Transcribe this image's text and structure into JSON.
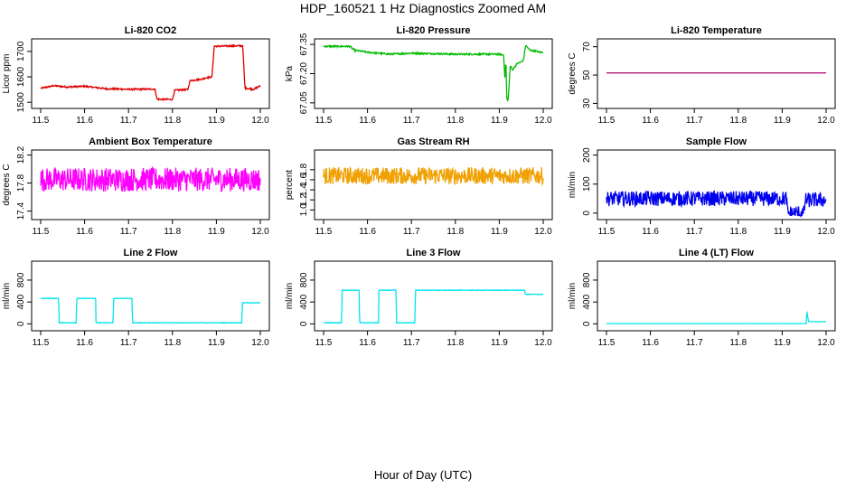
{
  "page": {
    "title": "HDP_160521  1 Hz Diagnostics Zoomed AM",
    "xlabel": "Hour of Day (UTC)"
  },
  "chart_data": [
    {
      "type": "line",
      "title": "Li-820 CO2",
      "ylabel": "Licor ppm",
      "color": "#dd0000",
      "xlim": [
        11.5,
        12.0
      ],
      "ylim": [
        1490,
        1735
      ],
      "xticks": [
        "11.5",
        "11.6",
        "11.7",
        "11.8",
        "11.9",
        "12.0"
      ],
      "yticks": [
        1500,
        1600,
        1700
      ],
      "x": [
        11.5,
        11.53,
        11.56,
        11.6,
        11.65,
        11.7,
        11.76,
        11.765,
        11.8,
        11.805,
        11.835,
        11.84,
        11.87,
        11.875,
        11.89,
        11.895,
        11.96,
        11.965,
        11.985,
        12.0
      ],
      "y": [
        1555,
        1565,
        1560,
        1563,
        1553,
        1551,
        1552,
        1512,
        1511,
        1547,
        1550,
        1585,
        1592,
        1596,
        1599,
        1720,
        1722,
        1556,
        1551,
        1565
      ],
      "noise": 3
    },
    {
      "type": "line",
      "title": "Li-820 Pressure",
      "ylabel": "kPa",
      "color": "#00bb00",
      "xlim": [
        11.5,
        12.0
      ],
      "ylim": [
        67.04,
        67.36
      ],
      "xticks": [
        "11.5",
        "11.6",
        "11.7",
        "11.8",
        "11.9",
        "12.0"
      ],
      "yticks": [
        "67.05",
        "67.20",
        "67.35"
      ],
      "x": [
        11.5,
        11.56,
        11.57,
        11.6,
        11.65,
        11.7,
        11.8,
        11.85,
        11.9,
        11.91,
        11.913,
        11.915,
        11.917,
        11.92,
        11.925,
        11.93,
        11.94,
        11.95,
        11.955,
        11.96,
        11.97,
        11.985,
        11.99,
        12.0
      ],
      "y": [
        67.34,
        67.34,
        67.32,
        67.31,
        67.3,
        67.305,
        67.3,
        67.3,
        67.3,
        67.295,
        67.16,
        67.28,
        67.07,
        67.06,
        67.24,
        67.22,
        67.25,
        67.26,
        67.27,
        67.345,
        67.32,
        67.315,
        67.31,
        67.31
      ],
      "noise": 0.004
    },
    {
      "type": "line",
      "title": "Li-820 Temperature",
      "ylabel": "degrees C",
      "color": "#b0187a",
      "xlim": [
        11.5,
        12.0
      ],
      "ylim": [
        29,
        73
      ],
      "xticks": [
        "11.5",
        "11.6",
        "11.7",
        "11.8",
        "11.9",
        "12.0"
      ],
      "yticks": [
        30,
        50,
        70
      ],
      "x": [
        11.5,
        12.0
      ],
      "y": [
        51.5,
        51.5
      ],
      "noise": 0
    },
    {
      "type": "line",
      "title": "Ambient Box Temperature",
      "ylabel": "degrees C",
      "color": "#ff00ff",
      "xlim": [
        11.5,
        12.0
      ],
      "ylim": [
        17.33,
        18.22
      ],
      "xticks": [
        "11.5",
        "11.6",
        "11.7",
        "11.8",
        "11.9",
        "12.0"
      ],
      "yticks": [
        "17.4",
        "17.8",
        "18.2"
      ],
      "x": [
        11.5,
        12.0
      ],
      "y": [
        17.85,
        17.85
      ],
      "noise": 0.17
    },
    {
      "type": "line",
      "title": "Gas Stream RH",
      "ylabel": "percent",
      "color": "#f0a000",
      "xlim": [
        11.5,
        12.0
      ],
      "ylim": [
        0.88,
        2.12
      ],
      "xticks": [
        "11.5",
        "11.6",
        "11.7",
        "11.8",
        "11.9",
        "12.0"
      ],
      "yticks": [
        "1.0",
        "1.2",
        "1.4",
        "1.6",
        "1.8"
      ],
      "x": [
        11.5,
        12.0
      ],
      "y": [
        1.68,
        1.68
      ],
      "noise": 0.17
    },
    {
      "type": "line",
      "title": "Sample Flow",
      "ylabel": "ml/min",
      "color": "#0000ee",
      "xlim": [
        11.5,
        12.0
      ],
      "ylim": [
        -10,
        205
      ],
      "xticks": [
        "11.5",
        "11.6",
        "11.7",
        "11.8",
        "11.9",
        "12.0"
      ],
      "yticks": [
        0,
        100,
        200
      ],
      "x": [
        11.5,
        11.91,
        11.912,
        11.95,
        11.952,
        12.0
      ],
      "y": [
        50,
        50,
        0,
        0,
        45,
        45
      ],
      "noise": 26
    },
    {
      "type": "line",
      "title": "Line 2 Flow",
      "ylabel": "ml/min",
      "color": "#00e5ee",
      "xlim": [
        11.5,
        12.0
      ],
      "ylim": [
        -60,
        1080
      ],
      "xticks": [
        "11.5",
        "11.6",
        "11.7",
        "11.8",
        "11.9",
        "12.0"
      ],
      "yticks": [
        0,
        400,
        800
      ],
      "x": [
        11.5,
        11.541,
        11.542,
        11.581,
        11.582,
        11.625,
        11.626,
        11.665,
        11.666,
        11.708,
        11.709,
        11.958,
        11.959,
        12.0
      ],
      "y": [
        465,
        465,
        20,
        20,
        465,
        465,
        20,
        20,
        465,
        465,
        20,
        20,
        385,
        385
      ],
      "noise": 4
    },
    {
      "type": "line",
      "title": "Line 3 Flow",
      "ylabel": "ml/min",
      "color": "#00e5ee",
      "xlim": [
        11.5,
        12.0
      ],
      "ylim": [
        -60,
        1080
      ],
      "xticks": [
        "11.5",
        "11.6",
        "11.7",
        "11.8",
        "11.9",
        "12.0"
      ],
      "yticks": [
        0,
        400,
        800
      ],
      "x": [
        11.5,
        11.541,
        11.542,
        11.581,
        11.582,
        11.625,
        11.626,
        11.665,
        11.666,
        11.708,
        11.709,
        11.958,
        11.959,
        12.0
      ],
      "y": [
        20,
        20,
        615,
        615,
        20,
        20,
        615,
        615,
        20,
        20,
        615,
        615,
        540,
        540
      ],
      "noise": 5
    },
    {
      "type": "line",
      "title": "Line 4 (LT) Flow",
      "ylabel": "ml/min",
      "color": "#00e5ee",
      "xlim": [
        11.5,
        12.0
      ],
      "ylim": [
        -60,
        1080
      ],
      "xticks": [
        "11.5",
        "11.6",
        "11.7",
        "11.8",
        "11.9",
        "12.0"
      ],
      "yticks": [
        0,
        400,
        800
      ],
      "x": [
        11.5,
        11.955,
        11.956,
        11.96,
        11.961,
        12.0
      ],
      "y": [
        5,
        5,
        240,
        40,
        40,
        40
      ],
      "noise": 1
    }
  ]
}
